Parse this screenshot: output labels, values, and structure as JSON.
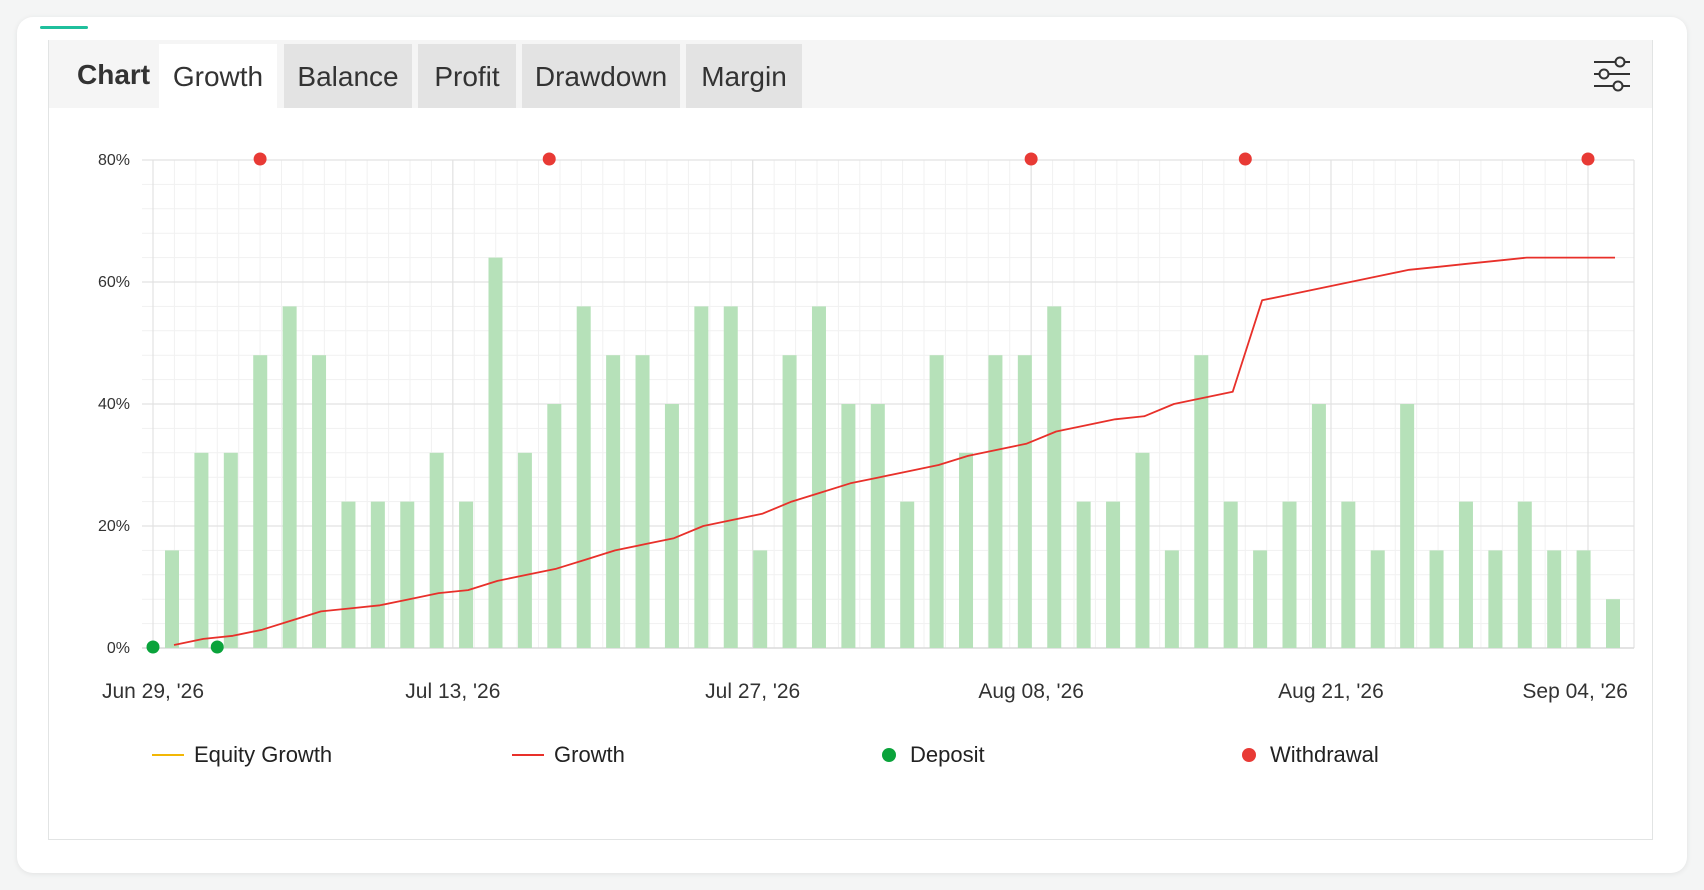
{
  "tabs": {
    "title": "Chart",
    "items": [
      {
        "label": "Growth",
        "active": true
      },
      {
        "label": "Balance",
        "active": false
      },
      {
        "label": "Profit",
        "active": false
      },
      {
        "label": "Drawdown",
        "active": false
      },
      {
        "label": "Margin",
        "active": false
      }
    ],
    "filter_icon": "sliders-icon"
  },
  "colors": {
    "bar": "#b6e1b9",
    "growth_line": "#e8302a",
    "equity_line": "#f2b705",
    "deposit": "#0aa33b",
    "withdrawal": "#e83a35",
    "accent": "#1fbf9c"
  },
  "legend": [
    {
      "label": "Equity Growth",
      "type": "line",
      "color": "#f2b705"
    },
    {
      "label": "Growth",
      "type": "line",
      "color": "#e8302a"
    },
    {
      "label": "Deposit",
      "type": "dot",
      "color": "#0aa33b"
    },
    {
      "label": "Withdrawal",
      "type": "dot",
      "color": "#e83a35"
    }
  ],
  "chart_data": {
    "type": "bar",
    "xlabel": "",
    "ylabel": "",
    "ylim": [
      0,
      80
    ],
    "yticks": [
      "0%",
      "20%",
      "40%",
      "60%",
      "80%"
    ],
    "xticks": [
      "Jun 29, '26",
      "Jul 13, '26",
      "Jul 27, '26",
      "Aug 08, '26",
      "Aug 21, '26",
      "Sep 04, '26"
    ],
    "grid": true,
    "legend_position": "bottom",
    "series": [
      {
        "name": "Equity Growth",
        "type": "bar",
        "values": [
          16,
          32,
          32,
          48,
          56,
          48,
          24,
          24,
          24,
          32,
          24,
          64,
          32,
          40,
          56,
          48,
          48,
          40,
          56,
          56,
          16,
          48,
          56,
          40,
          40,
          24,
          48,
          32,
          48,
          48,
          56,
          24,
          24,
          32,
          16,
          48,
          24,
          16,
          24,
          40,
          24,
          16,
          40,
          16,
          24,
          16,
          24,
          16,
          16,
          8
        ]
      },
      {
        "name": "Growth",
        "type": "line",
        "values": [
          0.5,
          1.5,
          2,
          3,
          4.5,
          6,
          6.5,
          7,
          8,
          9,
          9.5,
          11,
          12,
          13,
          14.5,
          16,
          17,
          18,
          20,
          21,
          22,
          24,
          25.5,
          27,
          28,
          29,
          30,
          31.5,
          32.5,
          33.5,
          35.5,
          36.5,
          37.5,
          38,
          40,
          41,
          42,
          57,
          58,
          59,
          60,
          61,
          62,
          62.5,
          63,
          63.5,
          64,
          64,
          64,
          64
        ]
      }
    ],
    "deposits": [
      {
        "date": "Jun 29, '26",
        "value": 0
      },
      {
        "date": "Jul 02, '26",
        "value": 0
      }
    ],
    "withdrawals": [
      {
        "date": "Jul 04, '26",
        "value": 80
      },
      {
        "date": "Jul 22, '26",
        "value": 80
      },
      {
        "date": "Aug 08, '26",
        "value": 80
      },
      {
        "date": "Aug 21, '26",
        "value": 80
      },
      {
        "date": "Sep 04, '26",
        "value": 80
      }
    ]
  }
}
